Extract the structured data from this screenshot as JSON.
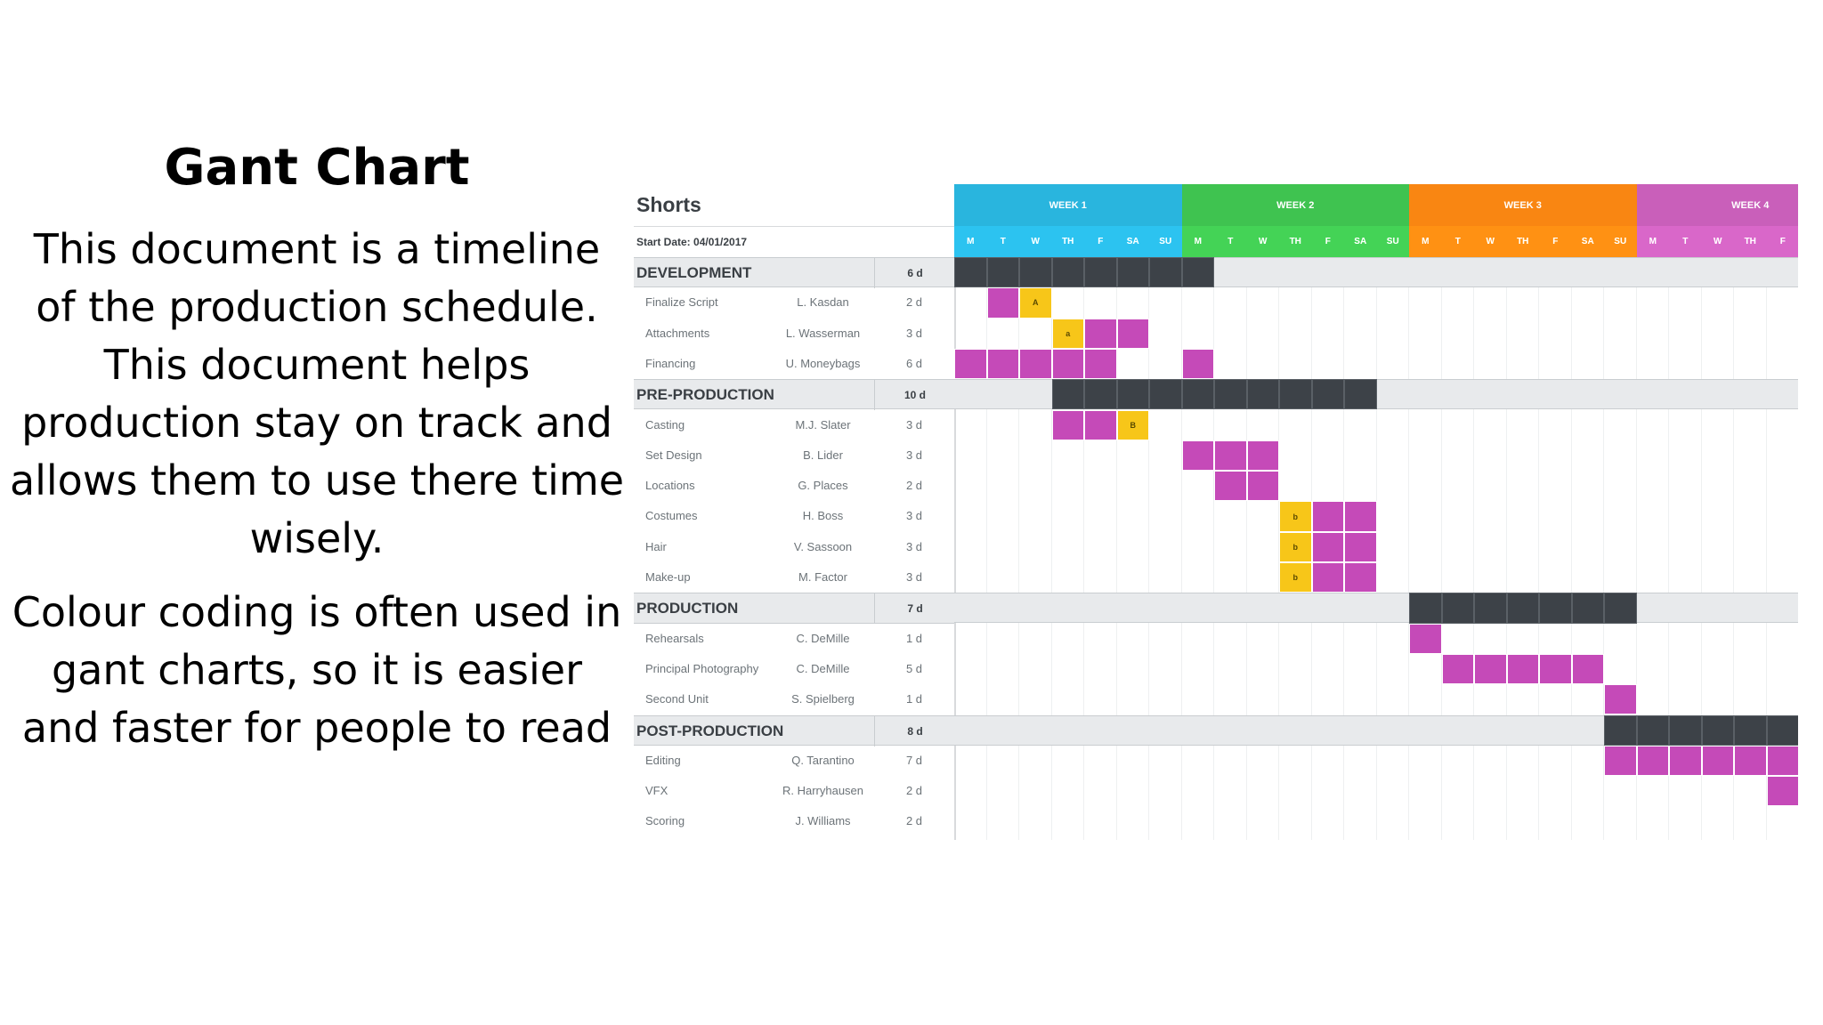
{
  "slide": {
    "title": "Gant Chart",
    "paragraph1": "This document is a timeline of the production schedule. This document helps production stay on track and allows them to use there time wisely.",
    "paragraph2": "Colour coding is often used in gant charts, so it is easier and faster for people to read"
  },
  "gantt": {
    "project_name": "Shorts",
    "start_date": "Start Date: 04/01/2017",
    "colors": {
      "summary_bar": "#3d4248",
      "task_bar": "#c54ab8",
      "milestone": "#f7c619",
      "phase_row": "#e8eaec"
    },
    "weeks": [
      {
        "label": "WEEK 1",
        "color": "#29b5de"
      },
      {
        "label": "WEEK 2",
        "color": "#3fc350"
      },
      {
        "label": "WEEK 3",
        "color": "#f98612"
      },
      {
        "label": "WEEK 4",
        "color": "#c95fba"
      }
    ],
    "day_labels": [
      "M",
      "T",
      "W",
      "TH",
      "F",
      "SA",
      "SU",
      "M",
      "T",
      "W",
      "TH",
      "F",
      "SA",
      "SU",
      "M",
      "T",
      "W",
      "TH",
      "F",
      "SA",
      "SU",
      "M",
      "T",
      "W",
      "TH",
      "F"
    ],
    "rows": [
      {
        "type": "phase",
        "name": "DEVELOPMENT",
        "duration": "6 d",
        "bars": [
          [
            0,
            8
          ]
        ]
      },
      {
        "type": "task",
        "name": "Finalize Script",
        "owner": "L. Kasdan",
        "duration": "2 d",
        "bars": [
          [
            1,
            1
          ]
        ],
        "milestones": [
          {
            "day": 2,
            "label": "A"
          }
        ]
      },
      {
        "type": "task",
        "name": "Attachments",
        "owner": "L. Wasserman",
        "duration": "3 d",
        "bars": [
          [
            4,
            2
          ]
        ],
        "milestones": [
          {
            "day": 3,
            "label": "a"
          }
        ]
      },
      {
        "type": "task",
        "name": "Financing",
        "owner": "U. Moneybags",
        "duration": "6 d",
        "bars": [
          [
            0,
            5
          ],
          [
            7,
            1
          ]
        ],
        "milestones": []
      },
      {
        "type": "phase",
        "name": "PRE-PRODUCTION",
        "duration": "10 d",
        "bars": [
          [
            3,
            10
          ]
        ]
      },
      {
        "type": "task",
        "name": "Casting",
        "owner": "M.J. Slater",
        "duration": "3 d",
        "bars": [
          [
            3,
            2
          ]
        ],
        "milestones": [
          {
            "day": 5,
            "label": "B"
          }
        ]
      },
      {
        "type": "task",
        "name": "Set Design",
        "owner": "B. Lider",
        "duration": "3 d",
        "bars": [
          [
            7,
            3
          ]
        ],
        "milestones": []
      },
      {
        "type": "task",
        "name": "Locations",
        "owner": "G. Places",
        "duration": "2 d",
        "bars": [
          [
            8,
            2
          ]
        ],
        "milestones": []
      },
      {
        "type": "task",
        "name": "Costumes",
        "owner": "H. Boss",
        "duration": "3 d",
        "bars": [
          [
            11,
            2
          ]
        ],
        "milestones": [
          {
            "day": 10,
            "label": "b"
          }
        ]
      },
      {
        "type": "task",
        "name": "Hair",
        "owner": "V. Sassoon",
        "duration": "3 d",
        "bars": [
          [
            11,
            2
          ]
        ],
        "milestones": [
          {
            "day": 10,
            "label": "b"
          }
        ]
      },
      {
        "type": "task",
        "name": "Make-up",
        "owner": "M. Factor",
        "duration": "3 d",
        "bars": [
          [
            11,
            2
          ]
        ],
        "milestones": [
          {
            "day": 10,
            "label": "b"
          }
        ]
      },
      {
        "type": "phase",
        "name": "PRODUCTION",
        "duration": "7 d",
        "bars": [
          [
            14,
            7
          ]
        ]
      },
      {
        "type": "task",
        "name": "Rehearsals",
        "owner": "C. DeMille",
        "duration": "1 d",
        "bars": [
          [
            14,
            1
          ]
        ],
        "milestones": []
      },
      {
        "type": "task",
        "name": "Principal Photography",
        "owner": "C. DeMille",
        "duration": "5 d",
        "bars": [
          [
            15,
            5
          ]
        ],
        "milestones": []
      },
      {
        "type": "task",
        "name": "Second Unit",
        "owner": "S. Spielberg",
        "duration": "1 d",
        "bars": [
          [
            20,
            1
          ]
        ],
        "milestones": []
      },
      {
        "type": "phase",
        "name": "POST-PRODUCTION",
        "duration": "8 d",
        "bars": [
          [
            20,
            6
          ]
        ]
      },
      {
        "type": "task",
        "name": "Editing",
        "owner": "Q. Tarantino",
        "duration": "7 d",
        "bars": [
          [
            20,
            6
          ]
        ],
        "milestones": []
      },
      {
        "type": "task",
        "name": "VFX",
        "owner": "R. Harryhausen",
        "duration": "2 d",
        "bars": [
          [
            25,
            1
          ]
        ],
        "milestones": []
      },
      {
        "type": "task",
        "name": "Scoring",
        "owner": "J. Williams",
        "duration": "2 d",
        "bars": [],
        "milestones": []
      }
    ]
  }
}
